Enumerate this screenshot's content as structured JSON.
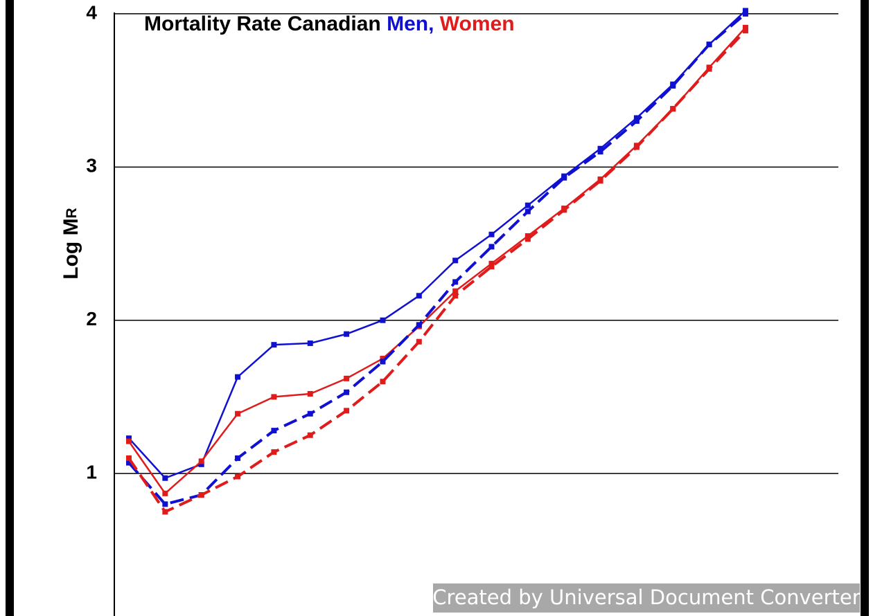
{
  "chart_data": {
    "type": "line",
    "title": "Mortality Rate Canadian",
    "title_men": "Men,",
    "title_women": "Women",
    "y_label": "Log M",
    "y_label_sub": "R",
    "watermark": "Created by Universal Document Converter",
    "categories": [
      null,
      null,
      null,
      null,
      null,
      null,
      null,
      null,
      null,
      null,
      null,
      null,
      null,
      null,
      null,
      null,
      null,
      null
    ],
    "ylim": [
      0.07,
      4.09
    ],
    "yticks": [
      1,
      2,
      3,
      4
    ],
    "grid": true,
    "series": [
      {
        "color": "#1010d0",
        "dash": false,
        "values": [
          1.23,
          0.97,
          1.06,
          1.63,
          1.84,
          1.85,
          1.91,
          2.0,
          2.16,
          2.39,
          2.56,
          2.75,
          2.94,
          3.12,
          3.32,
          3.54,
          3.8,
          4.02
        ]
      },
      {
        "color": "#e01b1b",
        "dash": false,
        "values": [
          1.21,
          0.87,
          1.08,
          1.39,
          1.5,
          1.52,
          1.62,
          1.75,
          1.96,
          2.19,
          2.37,
          2.55,
          2.73,
          2.92,
          3.14,
          3.38,
          3.65,
          3.91
        ]
      },
      {
        "color": "#1010d0",
        "dash": true,
        "values": [
          1.07,
          0.8,
          0.86,
          1.1,
          1.28,
          1.39,
          1.53,
          1.73,
          1.97,
          2.25,
          2.48,
          2.71,
          2.93,
          3.1,
          3.3,
          3.53,
          3.8,
          4.0
        ]
      },
      {
        "color": "#e01b1b",
        "dash": true,
        "values": [
          1.1,
          0.75,
          0.86,
          0.98,
          1.14,
          1.25,
          1.41,
          1.6,
          1.86,
          2.16,
          2.35,
          2.53,
          2.72,
          2.91,
          3.13,
          3.38,
          3.64,
          3.89
        ]
      }
    ]
  }
}
